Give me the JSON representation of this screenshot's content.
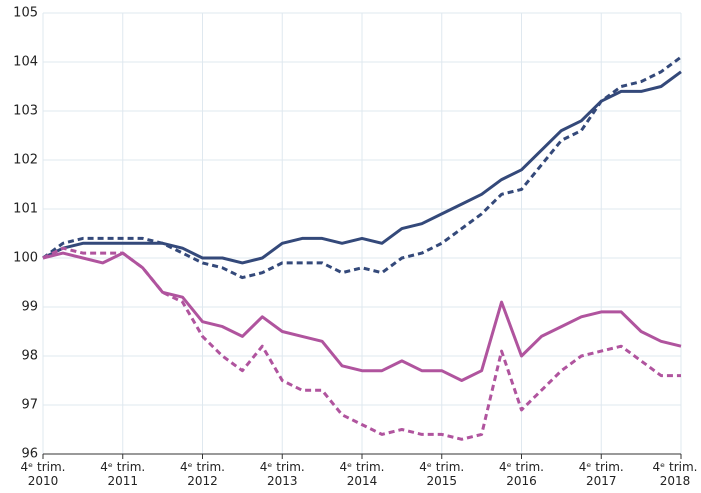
{
  "chart_data": {
    "type": "line",
    "categories": [
      "4ᵉ trim. 2010",
      null,
      null,
      null,
      "4ᵉ trim. 2011",
      null,
      null,
      null,
      "4ᵉ trim. 2012",
      null,
      null,
      null,
      "4ᵉ trim. 2013",
      null,
      null,
      null,
      "4ᵉ trim. 2014",
      null,
      null,
      null,
      "4ᵉ trim. 2015",
      null,
      null,
      null,
      "4ᵉ trim. 2016",
      null,
      null,
      null,
      "4ᵉ trim. 2017",
      null,
      null,
      null,
      "4ᵉ trim. 2018"
    ],
    "series": [
      {
        "color": "#34497a",
        "dashed": false,
        "values": [
          100,
          100.2,
          100.3,
          100.3,
          100.3,
          100.3,
          100.3,
          100.2,
          100.0,
          100.0,
          99.9,
          100.0,
          100.3,
          100.4,
          100.4,
          100.3,
          100.4,
          100.3,
          100.6,
          100.7,
          100.9,
          101.1,
          101.3,
          101.6,
          101.8,
          102.2,
          102.6,
          102.8,
          103.2,
          103.4,
          103.4,
          103.5,
          103.8
        ]
      },
      {
        "color": "#34497a",
        "dashed": true,
        "values": [
          100,
          100.3,
          100.4,
          100.4,
          100.4,
          100.4,
          100.3,
          100.1,
          99.9,
          99.8,
          99.6,
          99.7,
          99.9,
          99.9,
          99.9,
          99.7,
          99.8,
          99.7,
          100.0,
          100.1,
          100.3,
          100.6,
          100.9,
          101.3,
          101.4,
          101.9,
          102.4,
          102.6,
          103.2,
          103.5,
          103.6,
          103.8,
          104.1
        ]
      },
      {
        "color": "#b0549e",
        "dashed": false,
        "values": [
          100,
          100.1,
          100.0,
          99.9,
          100.1,
          99.8,
          99.3,
          99.2,
          98.7,
          98.6,
          98.4,
          98.8,
          98.5,
          98.4,
          98.3,
          97.8,
          97.7,
          97.7,
          97.9,
          97.7,
          97.7,
          97.5,
          97.7,
          99.1,
          98.0,
          98.4,
          98.6,
          98.8,
          98.9,
          98.9,
          98.5,
          98.3,
          98.2
        ]
      },
      {
        "color": "#b0549e",
        "dashed": true,
        "values": [
          100,
          100.2,
          100.1,
          100.1,
          100.1,
          99.8,
          99.3,
          99.1,
          98.4,
          98.0,
          97.7,
          98.2,
          97.5,
          97.3,
          97.3,
          96.8,
          96.6,
          96.4,
          96.5,
          96.4,
          96.4,
          96.3,
          96.4,
          98.1,
          96.9,
          97.3,
          97.7,
          98.0,
          98.1,
          98.2,
          97.9,
          97.6,
          97.6
        ]
      }
    ],
    "ylim": [
      96,
      105
    ],
    "yticks": [
      96,
      97,
      98,
      99,
      100,
      101,
      102,
      103,
      104,
      105
    ],
    "grid": true
  }
}
